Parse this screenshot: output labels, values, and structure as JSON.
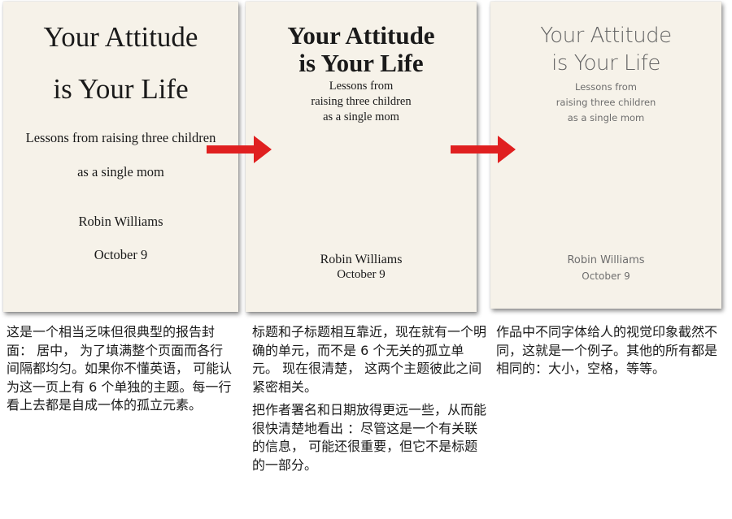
{
  "colors": {
    "paper": "#f6f2e9",
    "arrow": "#e02020",
    "text": "#1a1a1a",
    "muted_text": "#6e6e6e"
  },
  "icons": {
    "arrow": "right-arrow-icon"
  },
  "covers": [
    {
      "title_lines": [
        "Your Attitude",
        "is Your Life"
      ],
      "subtitle_lines": [
        "Lessons from raising three children",
        "as a single mom"
      ],
      "author": "Robin Williams",
      "date": "October 9"
    },
    {
      "title_lines": [
        "Your Attitude",
        "is Your Life"
      ],
      "subtitle_lines": [
        "Lessons from",
        "raising three children",
        "as a single mom"
      ],
      "author": "Robin Williams",
      "date": "October 9"
    },
    {
      "title_lines": [
        "Your Attitude",
        "is Your Life"
      ],
      "subtitle_lines": [
        "Lessons from",
        "raising three children",
        "as a single mom"
      ],
      "author": "Robin Williams",
      "date": "October 9"
    }
  ],
  "captions": [
    {
      "paragraphs": [
        "这是一个相当乏味但很典型的报告封面： 居中， 为了填满整个页面而各行间隔都均匀。如果你不懂英语， 可能认为这一页上有 6 个单独的主题。每一行看上去都是自成一体的孤立元素。"
      ]
    },
    {
      "paragraphs": [
        "标题和子标题相互靠近，现在就有一个明确的单元，而不是 6 个无关的孤立单元。 现在很清楚， 这两个主题彼此之间紧密相关。",
        "把作者署名和日期放得更远一些，从而能很快清楚地看出 ：尽管这是一个有关联的信息， 可能还很重要，但它不是标题的一部分。"
      ]
    },
    {
      "paragraphs": [
        "作品中不同字体给人的视觉印象截然不同，这就是一个例子。其他的所有都是相同的：大小，空格，等等。"
      ]
    }
  ]
}
